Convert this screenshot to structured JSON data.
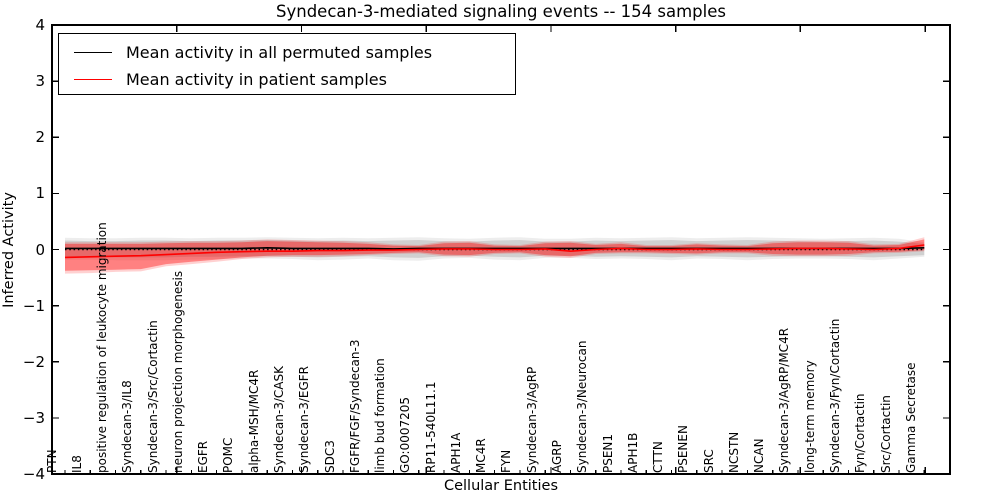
{
  "chart_data": {
    "type": "line",
    "title": "Syndecan-3-mediated signaling events -- 154 samples",
    "xlabel": "Cellular Entities",
    "ylabel": "Inferred Activity",
    "ylim": [
      -4,
      4
    ],
    "yticks": [
      -4,
      -3,
      -2,
      -1,
      0,
      1,
      2,
      3,
      4
    ],
    "xtick_values": [
      5,
      10,
      15,
      20,
      25,
      30,
      35
    ],
    "grid": false,
    "legend_position": "upper left",
    "categories": [
      "PTN",
      "IL8",
      "positive regulation of leukocyte migration",
      "Syndecan-3/IL8",
      "Syndecan-3/Src/Cortactin",
      "neuron projection morphogenesis",
      "EGFR",
      "POMC",
      "alpha-MSH/MC4R",
      "Syndecan-3/CASK",
      "Syndecan-3/EGFR",
      "SDC3",
      "FGFR/FGF/Syndecan-3",
      "limb bud formation",
      "GO:0007205",
      "RP11-540L11.1",
      "APH1A",
      "MC4R",
      "FYN",
      "Syndecan-3/AgRP",
      "AGRP",
      "Syndecan-3/Neurocan",
      "PSEN1",
      "APH1B",
      "CTTN",
      "PSENEN",
      "SRC",
      "NCSTN",
      "NCAN",
      "Syndecan-3/AgRP/MC4R",
      "long-term memory",
      "Syndecan-3/Fyn/Cortactin",
      "Fyn/Cortactin",
      "Src/Cortactin",
      "Gamma Secretase"
    ],
    "series": [
      {
        "name": "Mean activity in all permuted samples",
        "color": "#000000",
        "style": "solid",
        "values": [
          0.02,
          0.02,
          0.02,
          0.02,
          0.02,
          0.02,
          0.02,
          0.02,
          0.03,
          0.02,
          0.02,
          0.02,
          0.02,
          0.01,
          0.02,
          0.02,
          0.02,
          0.02,
          0.02,
          0.02,
          0.02,
          0.02,
          0.02,
          0.02,
          0.02,
          0.02,
          0.02,
          0.02,
          0.02,
          0.02,
          0.02,
          0.02,
          0.02,
          0.02,
          0.03
        ]
      },
      {
        "name": "Mean activity in patient samples",
        "color": "#ff0000",
        "style": "solid",
        "values": [
          -0.14,
          -0.13,
          -0.12,
          -0.11,
          -0.09,
          -0.07,
          -0.05,
          -0.04,
          -0.03,
          -0.03,
          -0.02,
          -0.02,
          -0.01,
          -0.01,
          0.0,
          0.01,
          0.01,
          0.0,
          0.0,
          0.01,
          -0.03,
          0.0,
          0.02,
          0.0,
          0.0,
          0.01,
          0.0,
          0.0,
          0.01,
          0.02,
          0.02,
          0.01,
          0.0,
          0.02,
          0.08
        ]
      }
    ],
    "bands": [
      {
        "name": "permuted-band-outer",
        "color": "#000000",
        "opacity": 0.07,
        "lower": [
          -0.18,
          -0.18,
          -0.19,
          -0.19,
          -0.19,
          -0.18,
          -0.17,
          -0.16,
          -0.16,
          -0.17,
          -0.19,
          -0.18,
          -0.16,
          -0.19,
          -0.2,
          -0.16,
          -0.15,
          -0.18,
          -0.19,
          -0.15,
          -0.15,
          -0.17,
          -0.16,
          -0.17,
          -0.19,
          -0.16,
          -0.17,
          -0.19,
          -0.17,
          -0.16,
          -0.16,
          -0.17,
          -0.19,
          -0.16,
          -0.13
        ],
        "upper": [
          0.21,
          0.2,
          0.2,
          0.21,
          0.21,
          0.2,
          0.21,
          0.21,
          0.22,
          0.21,
          0.2,
          0.21,
          0.2,
          0.21,
          0.22,
          0.2,
          0.19,
          0.21,
          0.22,
          0.19,
          0.19,
          0.21,
          0.2,
          0.21,
          0.22,
          0.2,
          0.21,
          0.22,
          0.21,
          0.2,
          0.19,
          0.2,
          0.21,
          0.19,
          0.13
        ]
      },
      {
        "name": "permuted-band",
        "color": "#000000",
        "opacity": 0.12,
        "lower": [
          -0.13,
          -0.13,
          -0.14,
          -0.14,
          -0.14,
          -0.13,
          -0.13,
          -0.12,
          -0.12,
          -0.13,
          -0.14,
          -0.13,
          -0.12,
          -0.14,
          -0.15,
          -0.12,
          -0.11,
          -0.13,
          -0.14,
          -0.11,
          -0.11,
          -0.13,
          -0.12,
          -0.13,
          -0.14,
          -0.12,
          -0.13,
          -0.14,
          -0.13,
          -0.12,
          -0.12,
          -0.13,
          -0.14,
          -0.12,
          -0.1
        ],
        "upper": [
          0.16,
          0.15,
          0.15,
          0.16,
          0.16,
          0.15,
          0.16,
          0.16,
          0.17,
          0.16,
          0.15,
          0.16,
          0.15,
          0.16,
          0.17,
          0.15,
          0.14,
          0.16,
          0.17,
          0.14,
          0.14,
          0.16,
          0.15,
          0.16,
          0.17,
          0.15,
          0.16,
          0.17,
          0.16,
          0.15,
          0.14,
          0.15,
          0.16,
          0.14,
          0.1
        ]
      },
      {
        "name": "patient-band-outer",
        "color": "#ff0000",
        "opacity": 0.18,
        "lower": [
          -0.43,
          -0.42,
          -0.4,
          -0.39,
          -0.3,
          -0.26,
          -0.22,
          -0.17,
          -0.14,
          -0.13,
          -0.13,
          -0.12,
          -0.1,
          -0.08,
          -0.07,
          -0.12,
          -0.13,
          -0.08,
          -0.07,
          -0.13,
          -0.15,
          -0.08,
          -0.07,
          -0.07,
          -0.08,
          -0.09,
          -0.07,
          -0.07,
          -0.11,
          -0.12,
          -0.12,
          -0.11,
          -0.07,
          -0.06,
          -0.03
        ],
        "upper": [
          0.13,
          0.13,
          0.13,
          0.13,
          0.14,
          0.15,
          0.15,
          0.16,
          0.18,
          0.17,
          0.16,
          0.15,
          0.13,
          0.09,
          0.08,
          0.14,
          0.15,
          0.09,
          0.08,
          0.14,
          0.15,
          0.1,
          0.13,
          0.08,
          0.08,
          0.11,
          0.09,
          0.08,
          0.14,
          0.16,
          0.16,
          0.15,
          0.09,
          0.1,
          0.22
        ]
      },
      {
        "name": "patient-band",
        "color": "#ff0000",
        "opacity": 0.38,
        "lower": [
          -0.38,
          -0.37,
          -0.36,
          -0.35,
          -0.26,
          -0.22,
          -0.18,
          -0.14,
          -0.11,
          -0.1,
          -0.1,
          -0.09,
          -0.08,
          -0.06,
          -0.05,
          -0.09,
          -0.1,
          -0.06,
          -0.05,
          -0.1,
          -0.12,
          -0.06,
          -0.05,
          -0.05,
          -0.06,
          -0.07,
          -0.05,
          -0.05,
          -0.08,
          -0.09,
          -0.09,
          -0.08,
          -0.05,
          -0.04,
          -0.01
        ],
        "upper": [
          0.1,
          0.1,
          0.1,
          0.1,
          0.11,
          0.12,
          0.12,
          0.13,
          0.15,
          0.14,
          0.13,
          0.12,
          0.1,
          0.07,
          0.06,
          0.11,
          0.12,
          0.07,
          0.06,
          0.11,
          0.12,
          0.08,
          0.1,
          0.06,
          0.06,
          0.09,
          0.07,
          0.06,
          0.11,
          0.13,
          0.13,
          0.12,
          0.07,
          0.08,
          0.18
        ]
      }
    ],
    "zero_line": {
      "y": 0,
      "style": "dotted",
      "color": "#000000"
    }
  }
}
